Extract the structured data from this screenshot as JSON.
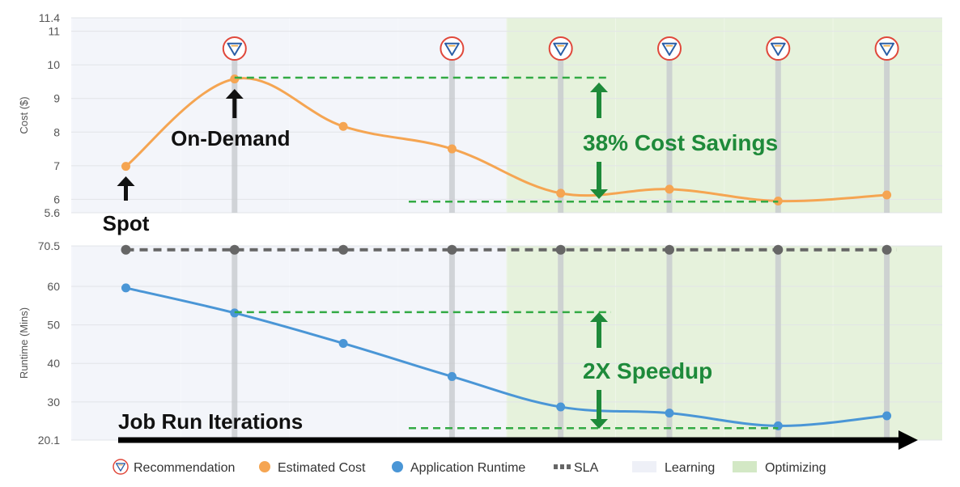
{
  "chart_data": [
    {
      "type": "line",
      "ylabel": "Cost ($)",
      "ylim": [
        5.6,
        11.4
      ],
      "yticks": [
        "5.6",
        "6",
        "7",
        "8",
        "9",
        "10",
        "11",
        "11.4"
      ],
      "x": [
        1,
        2,
        3,
        4,
        5,
        6,
        7,
        8
      ],
      "series": [
        {
          "name": "Estimated Cost",
          "values": [
            6.98,
            9.58,
            8.17,
            7.5,
            6.18,
            6.3,
            5.95,
            6.13
          ]
        }
      ],
      "recommendation_iterations": [
        2,
        4,
        5,
        6,
        7,
        8
      ],
      "regions": [
        {
          "name": "Learning",
          "from": 0.5,
          "to": 4.5
        },
        {
          "name": "Optimizing",
          "from": 4.5,
          "to": 8.5
        }
      ],
      "annotations": {
        "spot": "Spot",
        "on_demand": "On-Demand",
        "savings": "38% Cost Savings"
      }
    },
    {
      "type": "line",
      "ylabel": "Runtime (Mins)",
      "ylim": [
        20.1,
        70.5
      ],
      "yticks": [
        "20.1",
        "30",
        "40",
        "50",
        "60",
        "70.5"
      ],
      "x": [
        1,
        2,
        3,
        4,
        5,
        6,
        7,
        8
      ],
      "series": [
        {
          "name": "Application Runtime",
          "values": [
            59.6,
            53.1,
            45.2,
            36.6,
            28.7,
            27.1,
            23.8,
            26.4
          ]
        },
        {
          "name": "SLA",
          "values": [
            69.5,
            69.5,
            69.5,
            69.5,
            69.5,
            69.5,
            69.5,
            69.5
          ]
        }
      ],
      "annotations": {
        "speedup": "2X Speedup",
        "iterations": "Job Run Iterations"
      }
    }
  ],
  "legend": [
    {
      "label": "Recommendation",
      "marker": "recommendation-icon"
    },
    {
      "label": "Estimated Cost",
      "marker": "dot",
      "color": "#f5a552"
    },
    {
      "label": "Application Runtime",
      "marker": "dot",
      "color": "#4a96d6"
    },
    {
      "label": "SLA",
      "marker": "dashed-line",
      "color": "#666666"
    },
    {
      "label": "Learning",
      "marker": "swatch",
      "color": "#eef0f7"
    },
    {
      "label": "Optimizing",
      "marker": "swatch",
      "color": "#d3e8c5"
    }
  ],
  "colors": {
    "cost": "#f5a552",
    "runtime": "#4a96d6",
    "sla": "#666666",
    "learning": "#f3f5fa",
    "optimizing": "#e6f2dc",
    "annotation_green": "#1e8a3a"
  }
}
